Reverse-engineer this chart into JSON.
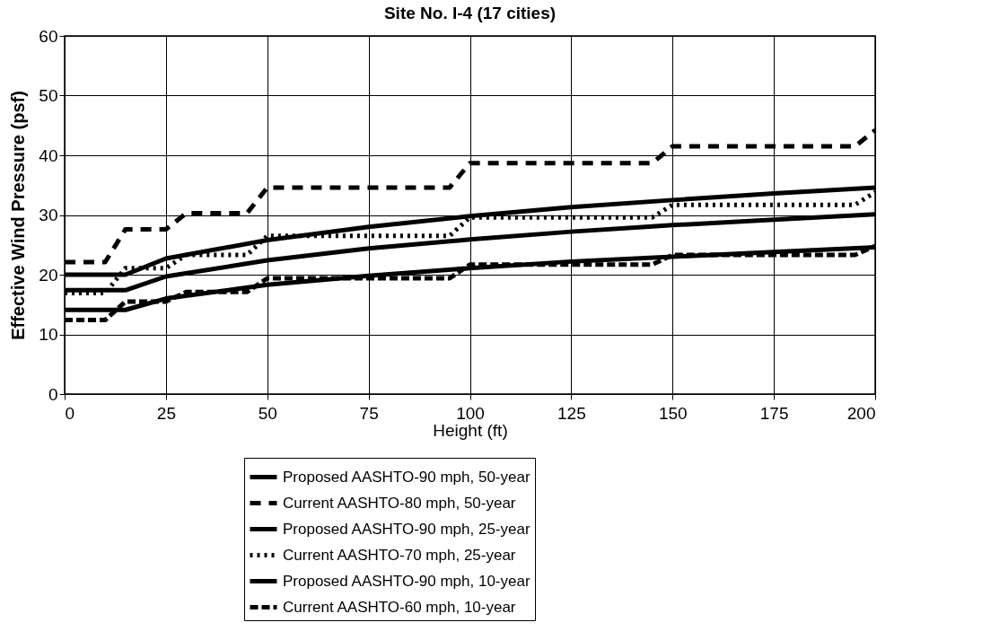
{
  "chart_data": {
    "type": "line",
    "title": "Site No. I-4 (17 cities)",
    "xlabel": "Height (ft)",
    "ylabel": "Effective Wind Pressure (psf)",
    "xlim": [
      0,
      200
    ],
    "xticks": [
      0,
      25,
      50,
      75,
      100,
      125,
      150,
      175,
      200
    ],
    "ylim": [
      0,
      60
    ],
    "yticks": [
      0,
      10,
      20,
      30,
      40,
      50,
      60
    ],
    "grid": true,
    "legend": "bottom",
    "marker": "none",
    "series": [
      {
        "name": "Proposed AASHTO-90 mph, 50-year",
        "color": "#000000",
        "line_style": "solid",
        "x": [
          0,
          15,
          25,
          50,
          75,
          100,
          125,
          150,
          175,
          200
        ],
        "values": [
          20,
          20,
          22.7,
          25.8,
          28.0,
          29.8,
          31.3,
          32.5,
          33.6,
          34.6
        ]
      },
      {
        "name": "Current AASHTO-80 mph, 50-year",
        "color": "#000000",
        "line_style": "dashed",
        "x": [
          0,
          10,
          15,
          25,
          30,
          45,
          50,
          95,
          100,
          145,
          150,
          195,
          200
        ],
        "values": [
          22.1,
          22.1,
          27.6,
          27.6,
          30.3,
          30.3,
          34.6,
          34.6,
          38.7,
          38.7,
          41.5,
          41.5,
          44.2
        ]
      },
      {
        "name": "Proposed AASHTO-90 mph, 25-year",
        "color": "#000000",
        "line_style": "solid",
        "x": [
          0,
          15,
          25,
          50,
          75,
          100,
          125,
          150,
          175,
          200
        ],
        "values": [
          17.4,
          17.4,
          19.7,
          22.4,
          24.4,
          25.9,
          27.2,
          28.3,
          29.2,
          30.1
        ]
      },
      {
        "name": "Current AASHTO-70 mph, 25-year",
        "color": "#000000",
        "line_style": "dotted",
        "x": [
          0,
          10,
          15,
          25,
          30,
          45,
          50,
          95,
          100,
          145,
          150,
          195,
          200
        ],
        "values": [
          16.9,
          16.9,
          21.1,
          21.1,
          23.3,
          23.3,
          26.5,
          26.5,
          29.6,
          29.6,
          31.7,
          31.7,
          33.8
        ]
      },
      {
        "name": "Proposed AASHTO-90 mph, 10-year",
        "color": "#000000",
        "line_style": "solid",
        "x": [
          0,
          15,
          25,
          50,
          75,
          100,
          125,
          150,
          175,
          200
        ],
        "values": [
          14.1,
          14.1,
          16.0,
          18.3,
          19.8,
          21.1,
          22.2,
          23.0,
          23.8,
          24.6
        ]
      },
      {
        "name": "Current AASHTO-60 mph, 10-year",
        "color": "#000000",
        "line_style": "dashed",
        "x": [
          0,
          10,
          15,
          25,
          30,
          45,
          50,
          95,
          100,
          145,
          150,
          195,
          200
        ],
        "values": [
          12.4,
          12.4,
          15.5,
          15.5,
          17.1,
          17.1,
          19.4,
          19.4,
          21.7,
          21.7,
          23.3,
          23.3,
          24.8
        ]
      }
    ]
  }
}
